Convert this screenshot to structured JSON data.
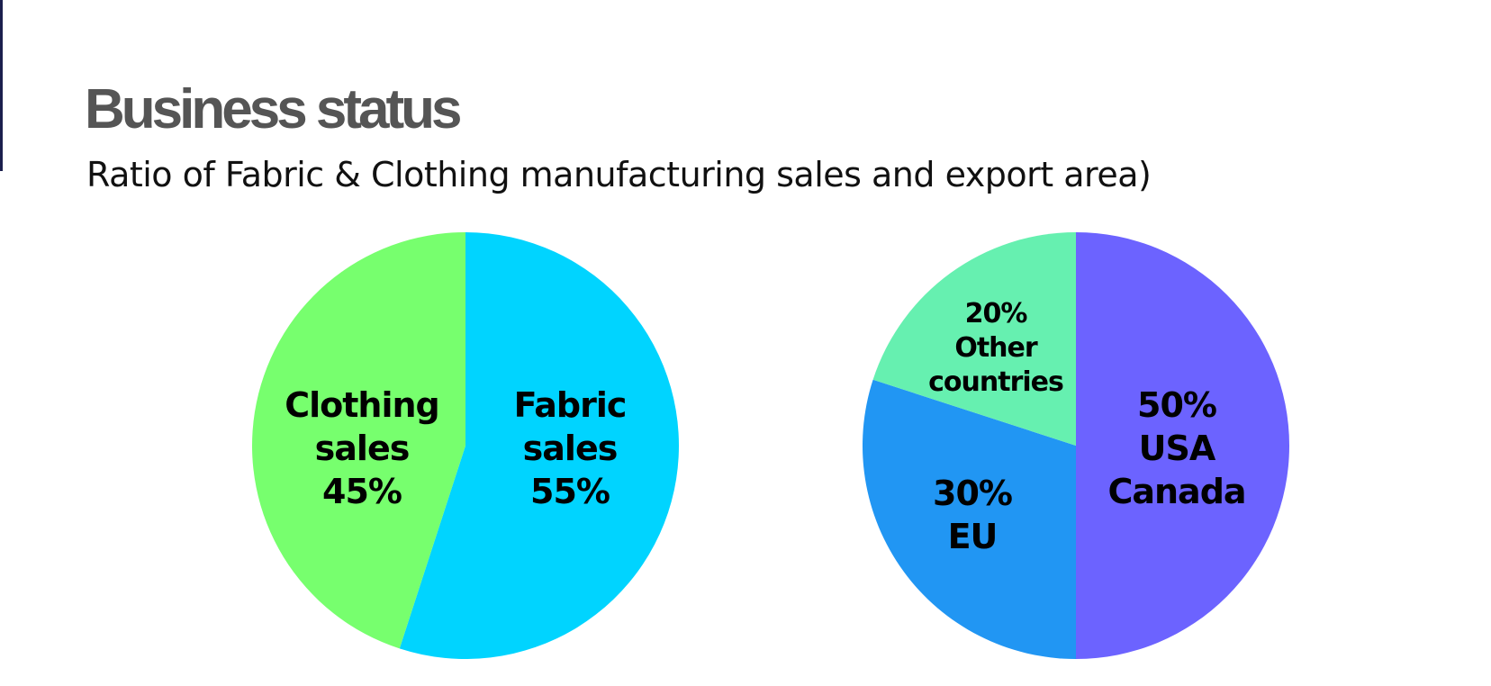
{
  "header": {
    "title": "Business status",
    "subtitle": "Ratio of Fabric & Clothing manufacturing sales and export area)"
  },
  "chart_data": [
    {
      "type": "pie",
      "categories": [
        "Fabric sales",
        "Clothing sales"
      ],
      "values": [
        55,
        45
      ],
      "value_labels": [
        "55%",
        "45%"
      ],
      "colors": [
        "#00d4ff",
        "#77ff6e"
      ]
    },
    {
      "type": "pie",
      "categories": [
        "USA Canada",
        "EU",
        "Other countries"
      ],
      "values": [
        50,
        30,
        20
      ],
      "value_labels": [
        "50%",
        "30%",
        "20%"
      ],
      "colors": [
        "#6c63ff",
        "#2196f3",
        "#66f0b0"
      ]
    }
  ]
}
